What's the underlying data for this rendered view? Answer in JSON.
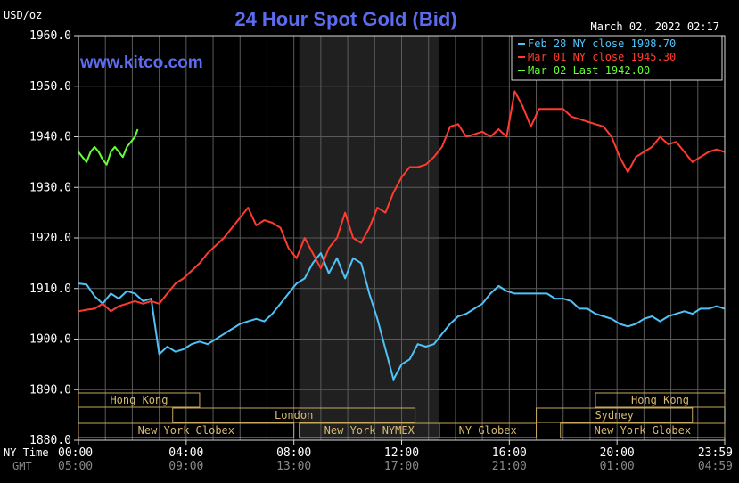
{
  "chart_data": {
    "type": "line",
    "title": "24 Hour Spot Gold (Bid)",
    "subtitle": "www.kitco.com",
    "timestamp": "March 02, 2022 02:17",
    "ylabel": "USD/oz",
    "ylim": [
      1880,
      1960
    ],
    "ytick_labels": [
      "1960.0",
      "1950.0",
      "1940.0",
      "1930.0",
      "1920.0",
      "1910.0",
      "1900.0",
      "1890.0",
      "1880.0"
    ],
    "ytick_values": [
      1960,
      1950,
      1940,
      1930,
      1920,
      1910,
      1900,
      1890,
      1880
    ],
    "xlim": [
      0,
      24
    ],
    "ny_time_label": "NY Time",
    "gmt_label": "GMT",
    "ny_ticks": [
      "00:00",
      "04:00",
      "08:00",
      "12:00",
      "16:00",
      "20:00",
      "23:59"
    ],
    "gmt_ticks": [
      "05:00",
      "09:00",
      "13:00",
      "17:00",
      "21:00",
      "01:00",
      "04:59"
    ],
    "tick_hours": [
      0,
      4,
      8,
      12,
      16,
      20,
      24
    ],
    "grid": true,
    "highlight_region_hours": [
      8.2,
      13.4
    ],
    "legend_position": "top-right",
    "legend": [
      {
        "label": "Feb 28 NY close 1908.70",
        "color": "#4fc3f7"
      },
      {
        "label": "Mar 01 NY close 1945.30",
        "color": "#ff3b30"
      },
      {
        "label": "Mar 02 Last 1942.00",
        "color": "#66ff33"
      }
    ],
    "sessions": [
      {
        "name": "Hong Kong",
        "start": 0,
        "end": 4.5,
        "row": 0
      },
      {
        "name": "Hong Kong",
        "start": 19.2,
        "end": 24,
        "row": 0
      },
      {
        "name": "London",
        "start": 3.5,
        "end": 12.5,
        "row": 1
      },
      {
        "name": "Sydney",
        "start": 17,
        "end": 22.8,
        "row": 1
      },
      {
        "name": "New York Globex",
        "start": 0,
        "end": 8,
        "row": 2
      },
      {
        "name": "New York NYMEX",
        "start": 8.2,
        "end": 13.4,
        "row": 2
      },
      {
        "name": "NY Globex",
        "start": 13.4,
        "end": 17,
        "row": 2
      },
      {
        "name": "New York Globex",
        "start": 17.9,
        "end": 24,
        "row": 2
      }
    ],
    "series": [
      {
        "name": "Feb 28 NY close 1908.70",
        "color": "#4fc3f7",
        "x": [
          0,
          0.3,
          0.6,
          0.9,
          1.2,
          1.5,
          1.8,
          2.1,
          2.4,
          2.7,
          3.0,
          3.3,
          3.6,
          3.9,
          4.2,
          4.5,
          4.8,
          5.1,
          5.4,
          5.7,
          6.0,
          6.3,
          6.6,
          6.9,
          7.2,
          7.5,
          7.8,
          8.1,
          8.4,
          8.7,
          9.0,
          9.3,
          9.6,
          9.9,
          10.2,
          10.5,
          10.8,
          11.1,
          11.4,
          11.7,
          12.0,
          12.3,
          12.6,
          12.9,
          13.2,
          13.5,
          13.8,
          14.1,
          14.4,
          14.7,
          15.0,
          15.3,
          15.6,
          15.9,
          16.2,
          16.5,
          16.8,
          17.1,
          17.4,
          17.7,
          18.0,
          18.3,
          18.6,
          18.9,
          19.2,
          19.5,
          19.8,
          20.1,
          20.4,
          20.7,
          21.0,
          21.3,
          21.6,
          21.9,
          22.2,
          22.5,
          22.8,
          23.1,
          23.4,
          23.7,
          23.99
        ],
        "values": [
          1911,
          1910.8,
          1908.5,
          1907,
          1909,
          1908,
          1909.5,
          1909,
          1907.5,
          1908,
          1897,
          1898.5,
          1897.5,
          1898,
          1899,
          1899.5,
          1899,
          1900,
          1901,
          1902,
          1903,
          1903.5,
          1904,
          1903.5,
          1905,
          1907,
          1909,
          1911,
          1912,
          1915,
          1917,
          1913,
          1916,
          1912,
          1916,
          1915,
          1909,
          1904,
          1898,
          1892,
          1895,
          1896,
          1899,
          1898.5,
          1899,
          1901,
          1903,
          1904.5,
          1905,
          1906,
          1907,
          1909,
          1910.5,
          1909.5,
          1909,
          1909,
          1909,
          1909,
          1909,
          1908,
          1908,
          1907.5,
          1906,
          1906,
          1905,
          1904.5,
          1904,
          1903,
          1902.5,
          1903,
          1904,
          1904.5,
          1903.5,
          1904.5,
          1905,
          1905.5,
          1905,
          1906,
          1906,
          1906.5,
          1906
        ]
      },
      {
        "name": "Mar 01 NY close 1945.30",
        "color": "#ff3b30",
        "x": [
          0,
          0.3,
          0.6,
          0.9,
          1.2,
          1.5,
          1.8,
          2.1,
          2.4,
          2.7,
          3.0,
          3.3,
          3.6,
          3.9,
          4.2,
          4.5,
          4.8,
          5.1,
          5.4,
          5.7,
          6.0,
          6.3,
          6.6,
          6.9,
          7.2,
          7.5,
          7.8,
          8.1,
          8.4,
          8.7,
          9.0,
          9.3,
          9.6,
          9.9,
          10.2,
          10.5,
          10.8,
          11.1,
          11.4,
          11.7,
          12.0,
          12.3,
          12.6,
          12.9,
          13.2,
          13.5,
          13.8,
          14.1,
          14.4,
          14.7,
          15.0,
          15.3,
          15.6,
          15.9,
          16.2,
          16.5,
          16.8,
          17.1,
          17.4,
          17.7,
          18.0,
          18.3,
          18.6,
          18.9,
          19.2,
          19.5,
          19.8,
          20.1,
          20.4,
          20.7,
          21.0,
          21.3,
          21.6,
          21.9,
          22.2,
          22.5,
          22.8,
          23.1,
          23.4,
          23.7,
          23.99
        ],
        "values": [
          1905.5,
          1905.8,
          1906,
          1907,
          1905.5,
          1906.5,
          1907,
          1907.5,
          1907,
          1907.5,
          1907,
          1909,
          1911,
          1912,
          1913.5,
          1915,
          1917,
          1918.5,
          1920,
          1922,
          1924,
          1926,
          1922.5,
          1923.5,
          1923,
          1922,
          1918,
          1916,
          1920,
          1917,
          1914,
          1918,
          1920,
          1925,
          1920,
          1919,
          1922,
          1926,
          1925,
          1929,
          1932,
          1934,
          1934,
          1934.5,
          1936,
          1938,
          1942,
          1942.5,
          1940,
          1940.5,
          1941,
          1940,
          1941.5,
          1940,
          1949,
          1946,
          1942,
          1945.5,
          1945.5,
          1945.5,
          1945.5,
          1944,
          1943.5,
          1943,
          1942.5,
          1942,
          1940,
          1936,
          1933,
          1936,
          1937,
          1938,
          1940,
          1938.5,
          1939,
          1937,
          1935,
          1936,
          1937,
          1937.5,
          1937
        ]
      },
      {
        "name": "Mar 02 Last 1942.00",
        "color": "#66ff33",
        "x": [
          0,
          0.15,
          0.3,
          0.45,
          0.6,
          0.75,
          0.9,
          1.05,
          1.2,
          1.35,
          1.5,
          1.65,
          1.8,
          1.95,
          2.1,
          2.2
        ],
        "values": [
          1937,
          1936,
          1935,
          1937,
          1938,
          1937,
          1935.5,
          1934.5,
          1937,
          1938,
          1937,
          1936,
          1938,
          1939,
          1940,
          1941.5
        ]
      }
    ]
  }
}
